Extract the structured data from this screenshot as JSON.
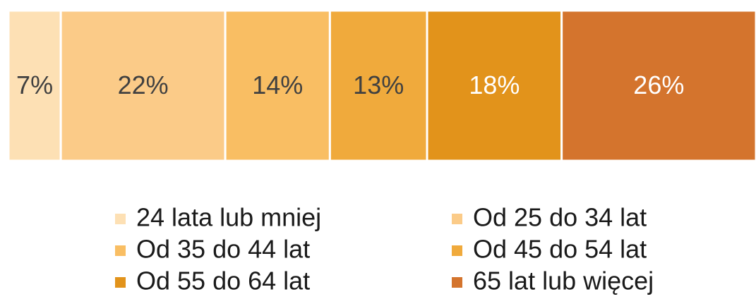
{
  "chart_data": {
    "type": "stacked_bar",
    "categories": [
      null
    ],
    "xlim": [
      0,
      100
    ],
    "series": [
      {
        "name": "24 lata lub mniej",
        "color": "#fde0b4",
        "values": [
          7
        ],
        "value_labels": [
          "7%"
        ]
      },
      {
        "name": "Od 25 do 34 lat",
        "color": "#fbcb88",
        "values": [
          22
        ],
        "value_labels": [
          "22%"
        ]
      },
      {
        "name": "Od 35 do 44 lat",
        "color": "#f9be63",
        "values": [
          14
        ],
        "value_labels": [
          "14%"
        ]
      },
      {
        "name": "Od 45 do 54 lat",
        "color": "#f0aa3c",
        "values": [
          13
        ],
        "value_labels": [
          "13%"
        ]
      },
      {
        "name": "Od 55 do 64 lat",
        "color": "#e2931b",
        "values": [
          18
        ],
        "value_labels": [
          "18%"
        ]
      },
      {
        "name": "65 lat lub więcej",
        "color": "#d4742d",
        "values": [
          26
        ],
        "value_labels": [
          "26%"
        ]
      }
    ]
  }
}
